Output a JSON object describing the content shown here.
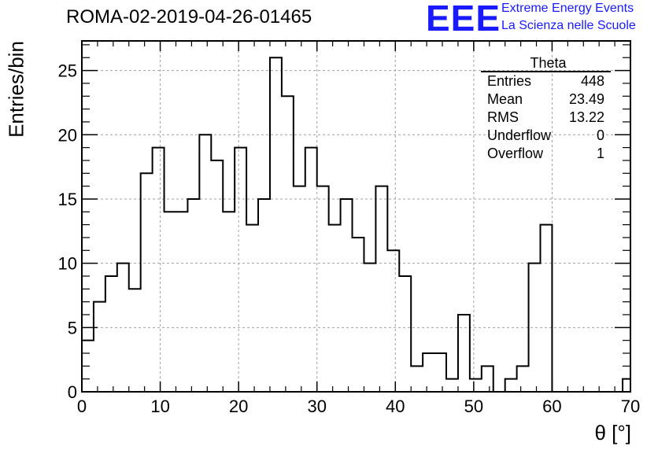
{
  "header": {
    "title": "ROMA-02-2019-04-26-01465",
    "logo_text": "EEE",
    "logo_line1": "Extreme Energy Events",
    "logo_line2": "La Scienza nelle Scuole",
    "brand_color": "#1a1aff"
  },
  "stats_box": {
    "name": "Theta",
    "rows": [
      {
        "label": "Entries",
        "value": "448"
      },
      {
        "label": "Mean",
        "value": "23.49"
      },
      {
        "label": "RMS",
        "value": "13.22"
      },
      {
        "label": "Underflow",
        "value": "0"
      },
      {
        "label": "Overflow",
        "value": "1"
      }
    ]
  },
  "chart_data": {
    "type": "bar",
    "style": "step-histogram",
    "title": "ROMA-02-2019-04-26-01465",
    "xlabel": "θ [°]",
    "ylabel": "Entries/bin",
    "xlim": [
      0,
      70
    ],
    "ylim": [
      0,
      27.3
    ],
    "grid": true,
    "xticks": [
      0,
      10,
      20,
      30,
      40,
      50,
      60,
      70
    ],
    "yticks": [
      0,
      5,
      10,
      15,
      20,
      25
    ],
    "bin_width": 1.5,
    "bin_edges_start": 0,
    "values": [
      4,
      7,
      9,
      10,
      8,
      17,
      19,
      14,
      14,
      15,
      20,
      18,
      14,
      19,
      13,
      15,
      26,
      23,
      16,
      19,
      16,
      13,
      15,
      12,
      10,
      16,
      11,
      9,
      2,
      3,
      3,
      1,
      6,
      1,
      2,
      0,
      1,
      2,
      10,
      13,
      0,
      0,
      0,
      0,
      0,
      0,
      1
    ]
  }
}
